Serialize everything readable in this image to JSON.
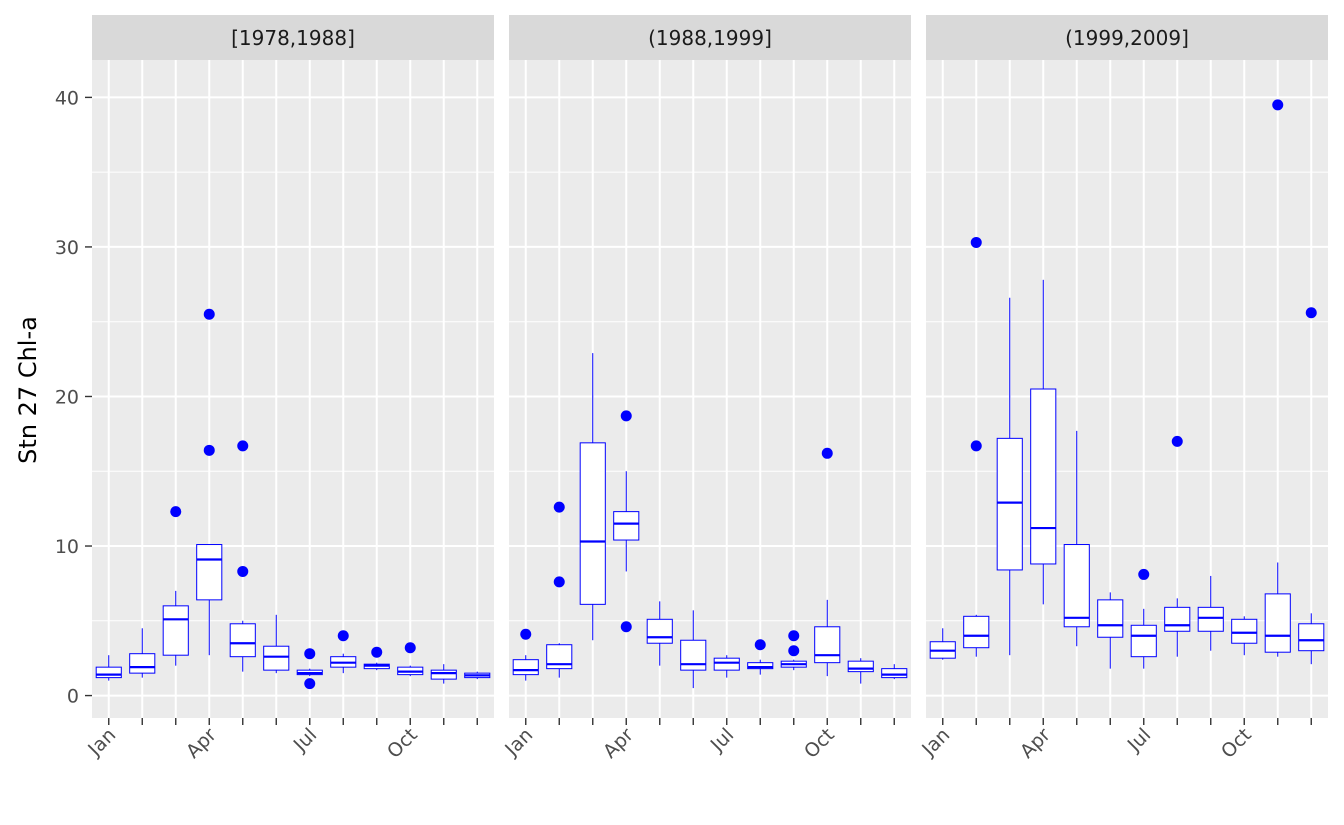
{
  "chart_data": {
    "type": "boxplot",
    "ylabel": "Stn 27 Chl-a",
    "xlabel": "",
    "ylim": [
      -1.5,
      42.5
    ],
    "yticks": [
      0,
      10,
      20,
      30,
      40
    ],
    "months": [
      1,
      2,
      3,
      4,
      5,
      6,
      7,
      8,
      9,
      10,
      11,
      12
    ],
    "x_tick_labels": [
      {
        "month": 1,
        "label": "Jan"
      },
      {
        "month": 4,
        "label": "Apr"
      },
      {
        "month": 7,
        "label": "Jul"
      },
      {
        "month": 10,
        "label": "Oct"
      }
    ],
    "grid": true,
    "colors": {
      "box": "#0000FF",
      "outlier": "#0000FF",
      "panel_bg": "#EBEBEB",
      "strip_bg": "#D9D9D9",
      "grid": "#FFFFFF"
    },
    "panels": [
      {
        "label": "[1978,1988]",
        "boxes": [
          {
            "month": 1,
            "min": 1.0,
            "q1": 1.2,
            "median": 1.4,
            "q3": 1.9,
            "max": 2.7,
            "outliers": []
          },
          {
            "month": 2,
            "min": 1.2,
            "q1": 1.5,
            "median": 1.9,
            "q3": 2.8,
            "max": 4.5,
            "outliers": []
          },
          {
            "month": 3,
            "min": 2.0,
            "q1": 2.7,
            "median": 5.1,
            "q3": 6.0,
            "max": 7.0,
            "outliers": [
              12.3
            ]
          },
          {
            "month": 4,
            "min": 2.7,
            "q1": 6.4,
            "median": 9.1,
            "q3": 10.1,
            "max": 10.1,
            "outliers": [
              25.5,
              16.4
            ]
          },
          {
            "month": 5,
            "min": 1.6,
            "q1": 2.6,
            "median": 3.5,
            "q3": 4.8,
            "max": 5.0,
            "outliers": [
              16.7,
              8.3
            ]
          },
          {
            "month": 6,
            "min": 1.5,
            "q1": 1.7,
            "median": 2.6,
            "q3": 3.3,
            "max": 5.4,
            "outliers": []
          },
          {
            "month": 7,
            "min": 1.3,
            "q1": 1.4,
            "median": 1.5,
            "q3": 1.7,
            "max": 1.8,
            "outliers": [
              2.8,
              0.8
            ]
          },
          {
            "month": 8,
            "min": 1.5,
            "q1": 1.9,
            "median": 2.2,
            "q3": 2.6,
            "max": 2.8,
            "outliers": [
              4.0
            ]
          },
          {
            "month": 9,
            "min": 1.7,
            "q1": 1.8,
            "median": 2.0,
            "q3": 2.1,
            "max": 2.2,
            "outliers": [
              2.9
            ]
          },
          {
            "month": 10,
            "min": 1.3,
            "q1": 1.4,
            "median": 1.6,
            "q3": 1.9,
            "max": 2.0,
            "outliers": [
              3.2
            ]
          },
          {
            "month": 11,
            "min": 0.8,
            "q1": 1.1,
            "median": 1.5,
            "q3": 1.7,
            "max": 2.1,
            "outliers": []
          },
          {
            "month": 12,
            "min": 1.1,
            "q1": 1.2,
            "median": 1.35,
            "q3": 1.5,
            "max": 1.6,
            "outliers": []
          }
        ]
      },
      {
        "label": "(1988,1999]",
        "boxes": [
          {
            "month": 1,
            "min": 1.0,
            "q1": 1.4,
            "median": 1.7,
            "q3": 2.4,
            "max": 2.7,
            "outliers": [
              4.1
            ]
          },
          {
            "month": 2,
            "min": 1.2,
            "q1": 1.8,
            "median": 2.1,
            "q3": 3.4,
            "max": 3.5,
            "outliers": [
              12.6,
              7.6
            ]
          },
          {
            "month": 3,
            "min": 3.7,
            "q1": 6.1,
            "median": 10.3,
            "q3": 16.9,
            "max": 22.9,
            "outliers": []
          },
          {
            "month": 4,
            "min": 8.3,
            "q1": 10.4,
            "median": 11.5,
            "q3": 12.3,
            "max": 15.0,
            "outliers": [
              18.7,
              4.6
            ]
          },
          {
            "month": 5,
            "min": 2.0,
            "q1": 3.5,
            "median": 3.9,
            "q3": 5.1,
            "max": 6.3,
            "outliers": []
          },
          {
            "month": 6,
            "min": 0.5,
            "q1": 1.7,
            "median": 2.1,
            "q3": 3.7,
            "max": 5.7,
            "outliers": []
          },
          {
            "month": 7,
            "min": 1.2,
            "q1": 1.7,
            "median": 2.2,
            "q3": 2.5,
            "max": 2.7,
            "outliers": []
          },
          {
            "month": 8,
            "min": 1.4,
            "q1": 1.8,
            "median": 1.9,
            "q3": 2.2,
            "max": 2.4,
            "outliers": [
              3.4
            ]
          },
          {
            "month": 9,
            "min": 1.7,
            "q1": 1.9,
            "median": 2.1,
            "q3": 2.3,
            "max": 2.4,
            "outliers": [
              4.0,
              3.0
            ]
          },
          {
            "month": 10,
            "min": 1.3,
            "q1": 2.2,
            "median": 2.7,
            "q3": 4.6,
            "max": 6.4,
            "outliers": [
              16.2
            ]
          },
          {
            "month": 11,
            "min": 0.8,
            "q1": 1.6,
            "median": 1.8,
            "q3": 2.3,
            "max": 2.5,
            "outliers": []
          },
          {
            "month": 12,
            "min": 1.1,
            "q1": 1.2,
            "median": 1.4,
            "q3": 1.8,
            "max": 2.1,
            "outliers": []
          }
        ]
      },
      {
        "label": "(1999,2009]",
        "boxes": [
          {
            "month": 1,
            "min": 2.4,
            "q1": 2.5,
            "median": 3.0,
            "q3": 3.6,
            "max": 4.5,
            "outliers": []
          },
          {
            "month": 2,
            "min": 2.6,
            "q1": 3.2,
            "median": 4.0,
            "q3": 5.3,
            "max": 5.4,
            "outliers": [
              30.3,
              16.7
            ]
          },
          {
            "month": 3,
            "min": 2.7,
            "q1": 8.4,
            "median": 12.9,
            "q3": 17.2,
            "max": 26.6,
            "outliers": []
          },
          {
            "month": 4,
            "min": 6.1,
            "q1": 8.8,
            "median": 11.2,
            "q3": 20.5,
            "max": 27.8,
            "outliers": []
          },
          {
            "month": 5,
            "min": 3.3,
            "q1": 4.6,
            "median": 5.2,
            "q3": 10.1,
            "max": 17.7,
            "outliers": []
          },
          {
            "month": 6,
            "min": 1.8,
            "q1": 3.9,
            "median": 4.7,
            "q3": 6.4,
            "max": 6.9,
            "outliers": []
          },
          {
            "month": 7,
            "min": 1.8,
            "q1": 2.6,
            "median": 4.0,
            "q3": 4.7,
            "max": 5.8,
            "outliers": [
              8.1
            ]
          },
          {
            "month": 8,
            "min": 2.6,
            "q1": 4.3,
            "median": 4.7,
            "q3": 5.9,
            "max": 6.5,
            "outliers": [
              17.0
            ]
          },
          {
            "month": 9,
            "min": 3.0,
            "q1": 4.3,
            "median": 5.2,
            "q3": 5.9,
            "max": 8.0,
            "outliers": []
          },
          {
            "month": 10,
            "min": 2.7,
            "q1": 3.5,
            "median": 4.2,
            "q3": 5.1,
            "max": 5.3,
            "outliers": []
          },
          {
            "month": 11,
            "min": 2.6,
            "q1": 2.9,
            "median": 4.0,
            "q3": 6.8,
            "max": 8.9,
            "outliers": [
              39.5
            ]
          },
          {
            "month": 12,
            "min": 2.1,
            "q1": 3.0,
            "median": 3.7,
            "q3": 4.8,
            "max": 5.5,
            "outliers": [
              25.6
            ]
          }
        ]
      }
    ]
  }
}
